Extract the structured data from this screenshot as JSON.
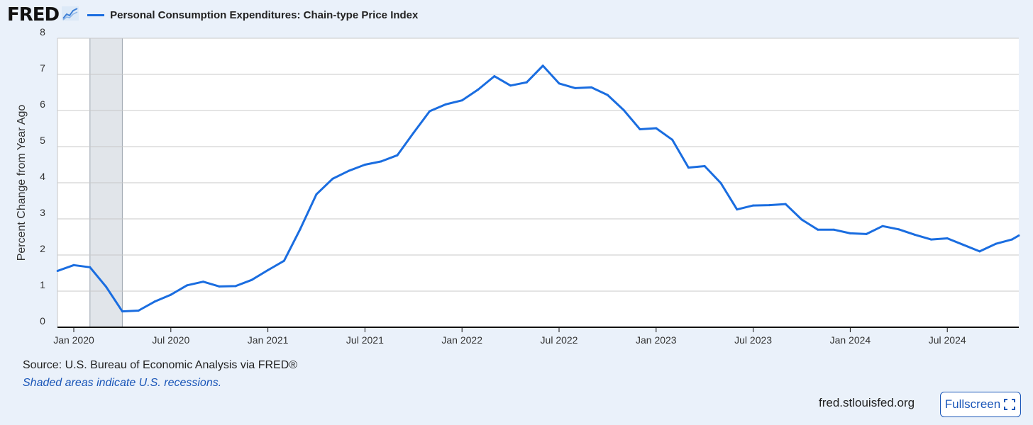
{
  "header": {
    "logo_text": "FRED",
    "logo_icon": "line-chart-icon",
    "legend_label": "Personal Consumption Expenditures: Chain-type Price Index",
    "series_color": "#1a6de0"
  },
  "chart_data": {
    "type": "line",
    "title": "Personal Consumption Expenditures: Chain-type Price Index",
    "ylabel": "Percent Change from Year Ago",
    "xlabel": "",
    "ylim": [
      0,
      8
    ],
    "yticks": [
      "0",
      "1",
      "2",
      "3",
      "4",
      "5",
      "6",
      "7",
      "8"
    ],
    "xticks": [
      "Jan 2020",
      "Jul 2020",
      "Jan 2021",
      "Jul 2021",
      "Jan 2022",
      "Jul 2022",
      "Jan 2023",
      "Jul 2023",
      "Jan 2024",
      "Jul 2024"
    ],
    "grid": true,
    "recession": {
      "start": "2020-02",
      "end": "2020-04"
    },
    "x": [
      "2019-12",
      "2020-01",
      "2020-02",
      "2020-03",
      "2020-04",
      "2020-05",
      "2020-06",
      "2020-07",
      "2020-08",
      "2020-09",
      "2020-10",
      "2020-11",
      "2020-12",
      "2021-01",
      "2021-02",
      "2021-03",
      "2021-04",
      "2021-05",
      "2021-06",
      "2021-07",
      "2021-08",
      "2021-09",
      "2021-10",
      "2021-11",
      "2021-12",
      "2022-01",
      "2022-02",
      "2022-03",
      "2022-04",
      "2022-05",
      "2022-06",
      "2022-07",
      "2022-08",
      "2022-09",
      "2022-10",
      "2022-11",
      "2022-12",
      "2023-01",
      "2023-02",
      "2023-03",
      "2023-04",
      "2023-05",
      "2023-06",
      "2023-07",
      "2023-08",
      "2023-09",
      "2023-10",
      "2023-11",
      "2023-12",
      "2024-01",
      "2024-02",
      "2024-03",
      "2024-04",
      "2024-05",
      "2024-06",
      "2024-07",
      "2024-08",
      "2024-09",
      "2024-10",
      "2024-11",
      "2024-12"
    ],
    "series": [
      {
        "values": [
          1.56,
          1.72,
          1.66,
          1.12,
          0.44,
          0.46,
          0.71,
          0.9,
          1.16,
          1.26,
          1.13,
          1.14,
          1.31,
          1.58,
          1.84,
          2.72,
          3.68,
          4.11,
          4.33,
          4.5,
          4.59,
          4.76,
          5.38,
          5.98,
          6.17,
          6.28,
          6.58,
          6.95,
          6.69,
          6.78,
          7.24,
          6.75,
          6.62,
          6.64,
          6.43,
          6.01,
          5.48,
          5.51,
          5.19,
          4.42,
          4.46,
          3.99,
          3.26,
          3.37,
          3.38,
          3.41,
          2.98,
          2.7,
          2.7,
          2.6,
          2.58,
          2.8,
          2.71,
          2.56,
          2.43,
          2.46,
          2.28,
          2.1,
          2.31,
          2.43,
          2.54
        ]
      }
    ]
  },
  "footer": {
    "source": "Source: U.S. Bureau of Economic Analysis via FRED®",
    "recession_note": "Shaded areas indicate U.S. recessions.",
    "site": "fred.stlouisfed.org",
    "fullscreen_label": "Fullscreen",
    "fullscreen_icon": "fullscreen-icon"
  }
}
